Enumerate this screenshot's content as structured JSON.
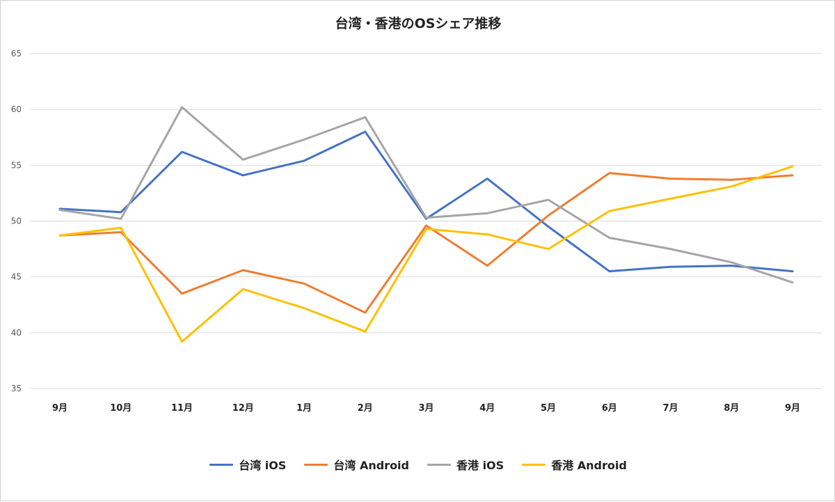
{
  "chart_data": {
    "type": "line",
    "title": "台湾・香港のOSシェア推移",
    "xlabel": "",
    "ylabel": "",
    "categories": [
      "9月",
      "10月",
      "11月",
      "12月",
      "1月",
      "2月",
      "3月",
      "4月",
      "5月",
      "6月",
      "7月",
      "8月",
      "9月"
    ],
    "ylim": [
      35,
      65
    ],
    "yticks": [
      35,
      40,
      45,
      50,
      55,
      60,
      65
    ],
    "grid": true,
    "legend_position": "bottom",
    "series": [
      {
        "name": "台湾 iOS",
        "color": "#4472c4",
        "values": [
          51.1,
          50.8,
          56.2,
          54.1,
          55.4,
          58.0,
          50.2,
          53.8,
          49.5,
          45.5,
          45.9,
          46.0,
          45.5
        ]
      },
      {
        "name": "台湾 Android",
        "color": "#ed7d31",
        "values": [
          48.7,
          49.0,
          43.5,
          45.6,
          44.4,
          41.8,
          49.6,
          46.0,
          50.5,
          54.3,
          53.8,
          53.7,
          54.1
        ]
      },
      {
        "name": "香港 iOS",
        "color": "#a5a5a5",
        "values": [
          51.0,
          50.2,
          60.2,
          55.5,
          57.3,
          59.3,
          50.3,
          50.7,
          51.9,
          48.5,
          47.5,
          46.3,
          44.5
        ]
      },
      {
        "name": "香港 Android",
        "color": "#ffc000",
        "values": [
          48.7,
          49.4,
          39.2,
          43.9,
          42.2,
          40.1,
          49.3,
          48.8,
          47.5,
          50.9,
          52.0,
          53.1,
          54.9
        ]
      }
    ]
  }
}
